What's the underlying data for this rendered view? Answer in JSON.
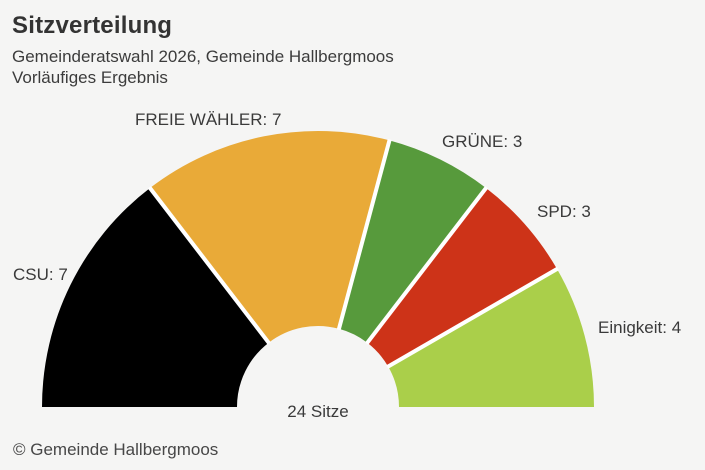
{
  "header": {
    "title": "Sitzverteilung",
    "subtitle1": "Gemeinderatswahl 2026, Gemeinde Hallbergmoos",
    "subtitle2": "Vorläufiges Ergebnis"
  },
  "chart_data": {
    "type": "pie",
    "subtype": "hemicycle-half-donut",
    "title": "Sitzverteilung",
    "total_seats": 24,
    "total_label": "24 Sitze",
    "start_angle_deg": 180,
    "end_angle_deg": 0,
    "parties": [
      {
        "name": "CSU",
        "seats": 7,
        "color": "#000000",
        "label": "CSU: 7"
      },
      {
        "name": "FREIE WÄHLER",
        "seats": 7,
        "color": "#e9aa38",
        "label": "FREIE WÄHLER: 7"
      },
      {
        "name": "GRÜNE",
        "seats": 3,
        "color": "#579a3c",
        "label": "GRÜNE: 3"
      },
      {
        "name": "SPD",
        "seats": 3,
        "color": "#cd3318",
        "label": "SPD: 3"
      },
      {
        "name": "Einigkeit",
        "seats": 4,
        "color": "#aacf4a",
        "label": "Einigkeit: 4"
      }
    ]
  },
  "footer": {
    "copyright": "© Gemeinde Hallbergmoos"
  },
  "colors": {
    "background": "#f5f5f4",
    "text": "#3a3a3a",
    "segment_gap": "#ffffff"
  }
}
